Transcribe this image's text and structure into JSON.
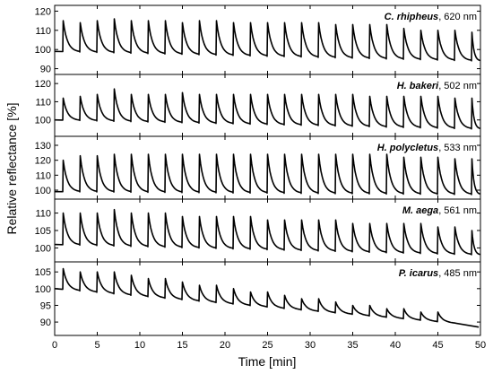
{
  "chart_data": {
    "type": "line",
    "xlabel": "Time [min]",
    "ylabel": "Relative reflectance [%]",
    "xlim": [
      0,
      50
    ],
    "xticks": [
      0,
      5,
      10,
      15,
      20,
      25,
      30,
      35,
      40,
      45,
      50
    ],
    "grid": false,
    "panels": [
      {
        "species": "C. rhipheus",
        "wavelength": ", 620 nm",
        "ylim": [
          87,
          123
        ],
        "yticks": [
          90,
          100,
          110,
          120
        ],
        "baseline_start": 99,
        "baseline_end": 94,
        "tail_end": 94,
        "peak_times": [
          1,
          3,
          5,
          7,
          9,
          11,
          13,
          15,
          17,
          19,
          21,
          23,
          25,
          27,
          29,
          31,
          33,
          35,
          37,
          39,
          41,
          43,
          45,
          47,
          49
        ],
        "peak_values": [
          115,
          114,
          115,
          116,
          115,
          115,
          115,
          114,
          115,
          115,
          114,
          114,
          114,
          114,
          114,
          114,
          113,
          113,
          113,
          113,
          111,
          110,
          110,
          110,
          109
        ]
      },
      {
        "species": "H. bakeri",
        "wavelength": ", 502 nm",
        "ylim": [
          91,
          125
        ],
        "yticks": [
          100,
          110,
          120
        ],
        "baseline_start": 100,
        "baseline_end": 95,
        "tail_end": 95,
        "peak_times": [
          1,
          3,
          5,
          7,
          9,
          11,
          13,
          15,
          17,
          19,
          21,
          23,
          25,
          27,
          29,
          31,
          33,
          35,
          37,
          39,
          41,
          43,
          45,
          47,
          49
        ],
        "peak_values": [
          112,
          113,
          114,
          117,
          114,
          114,
          114,
          115,
          114,
          114,
          114,
          114,
          114,
          114,
          114,
          114,
          114,
          114,
          113,
          113,
          113,
          113,
          113,
          112,
          112
        ]
      },
      {
        "species": "H. polycletus",
        "wavelength": ", 533 nm",
        "ylim": [
          94,
          136
        ],
        "yticks": [
          100,
          110,
          120,
          130
        ],
        "baseline_start": 99,
        "baseline_end": 97,
        "tail_end": 97,
        "peak_times": [
          1,
          3,
          5,
          7,
          9,
          11,
          13,
          15,
          17,
          19,
          21,
          23,
          25,
          27,
          29,
          31,
          33,
          35,
          37,
          39,
          41,
          43,
          45,
          47,
          49
        ],
        "peak_values": [
          120,
          123,
          123,
          124,
          124,
          124,
          124,
          124,
          124,
          124,
          124,
          124,
          124,
          124,
          124,
          124,
          124,
          124,
          124,
          124,
          122,
          122,
          122,
          121,
          121
        ]
      },
      {
        "species": "M. aega",
        "wavelength": ", 561 nm",
        "ylim": [
          96,
          114
        ],
        "yticks": [
          100,
          105,
          110
        ],
        "baseline_start": 101,
        "baseline_end": 98,
        "tail_end": 98,
        "peak_times": [
          1,
          3,
          5,
          7,
          9,
          11,
          13,
          15,
          17,
          19,
          21,
          23,
          25,
          27,
          29,
          31,
          33,
          35,
          37,
          39,
          41,
          43,
          45,
          47,
          49
        ],
        "peak_values": [
          110,
          110,
          110,
          111,
          110,
          110,
          110,
          109,
          109,
          109,
          109,
          109,
          108,
          108,
          108,
          108,
          108,
          107,
          107,
          107,
          107,
          107,
          106,
          106,
          105
        ]
      },
      {
        "species": "P. icarus",
        "wavelength": ", 485 nm",
        "ylim": [
          86,
          108
        ],
        "yticks": [
          90,
          95,
          100,
          105
        ],
        "baseline_start": 100,
        "baseline_end": 89,
        "tail_end": 88.5,
        "peak_times": [
          1,
          3,
          5,
          7,
          9,
          11,
          13,
          15,
          17,
          19,
          21,
          23,
          25,
          27,
          29,
          31,
          33,
          35,
          37,
          39,
          41,
          43,
          45
        ],
        "peak_values": [
          106,
          105,
          105,
          105,
          104,
          103,
          103,
          102,
          101,
          101,
          100,
          99,
          99,
          98,
          97,
          97,
          96,
          95,
          95,
          94,
          94,
          93,
          93
        ]
      }
    ]
  }
}
